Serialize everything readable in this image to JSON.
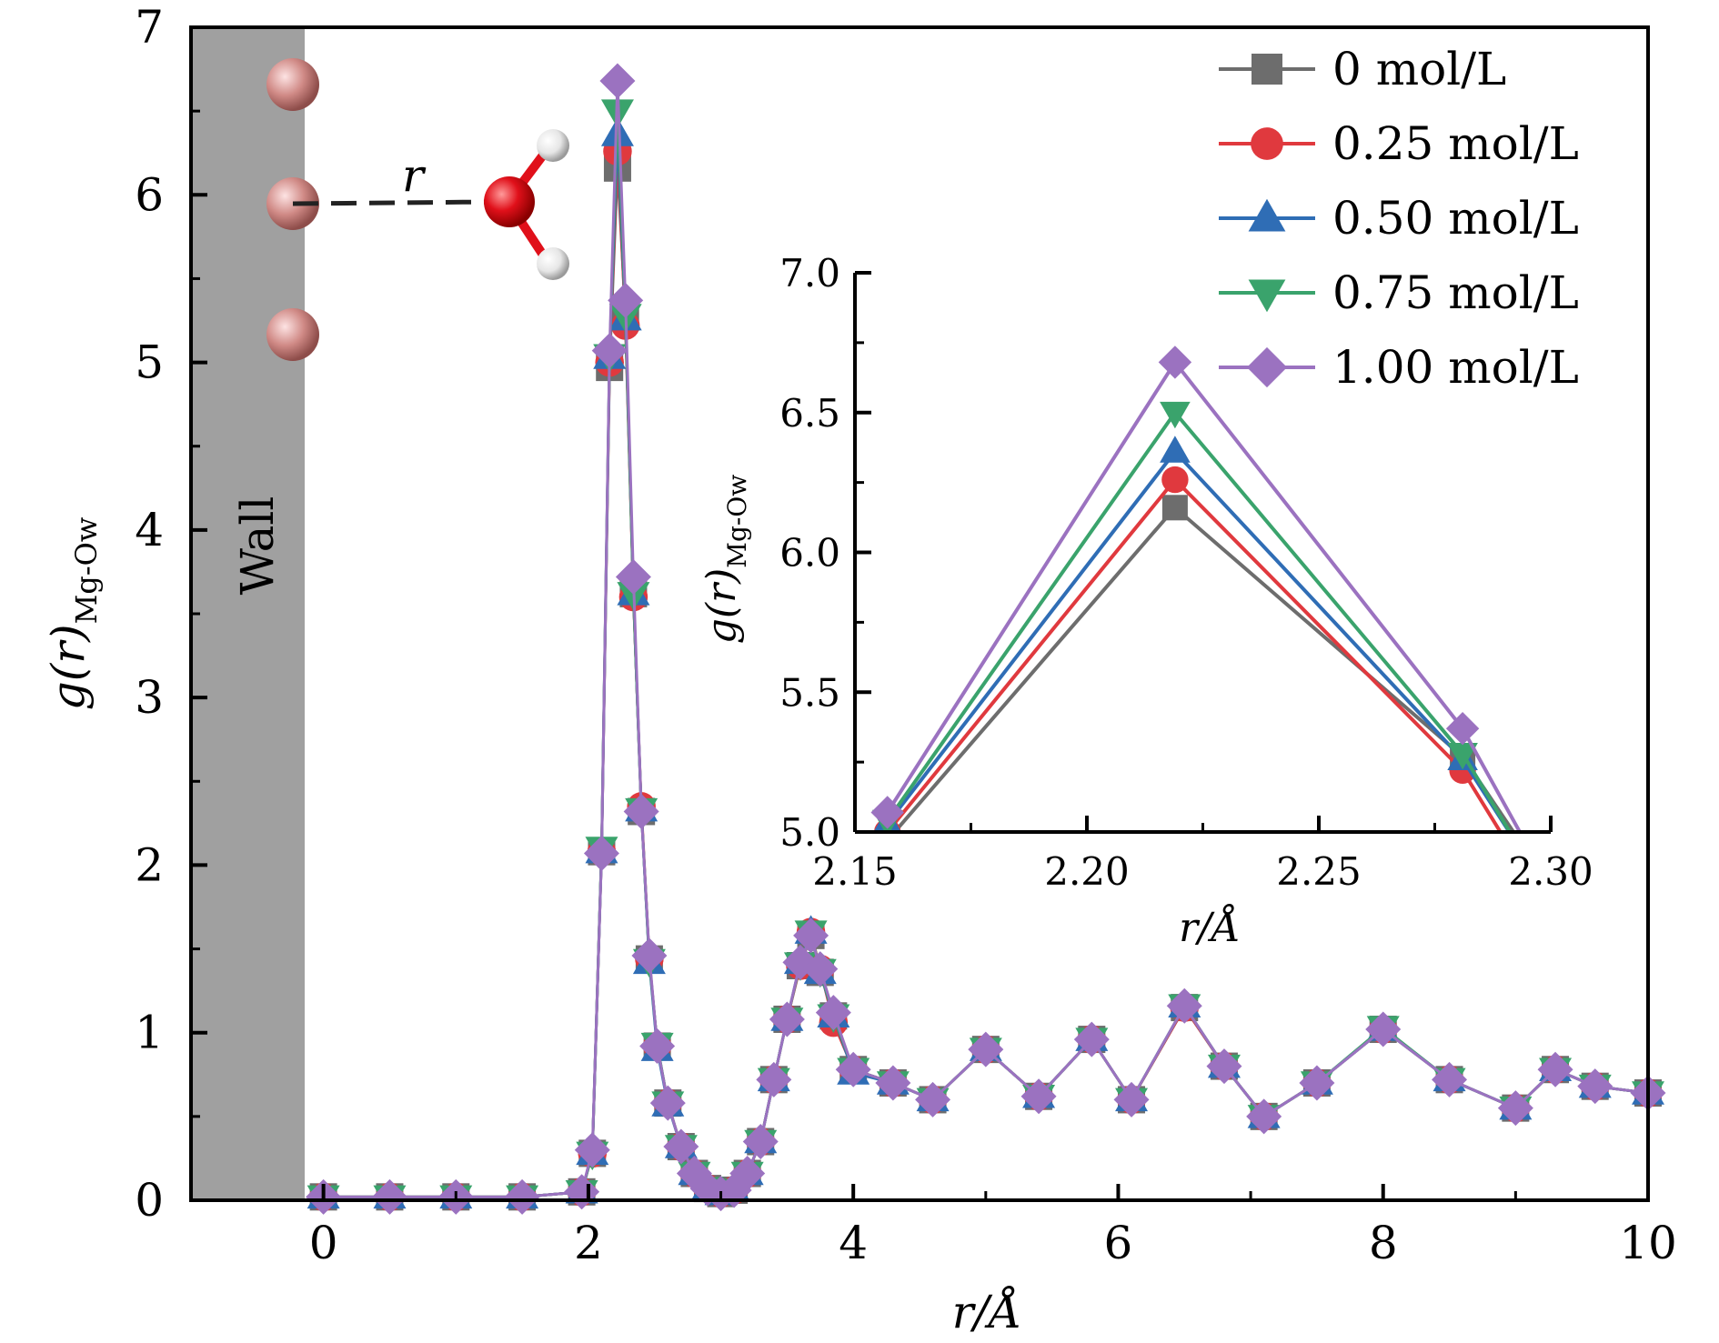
{
  "chart_data": [
    {
      "id": "main",
      "type": "line",
      "xlabel": "r/Å",
      "ylabel_main": "g(r)",
      "ylabel_sub": "Mg-Ow",
      "xlim": [
        -1.0,
        10.0
      ],
      "ylim": [
        0,
        7
      ],
      "xticks": [
        0,
        2,
        4,
        6,
        8,
        10
      ],
      "yticks": [
        0,
        1,
        2,
        3,
        4,
        5,
        6,
        7
      ],
      "legend_position": "top-right",
      "annotations": {
        "wall": "Wall",
        "r": "r"
      },
      "series": [
        {
          "name": "0 mol/L",
          "color": "#6d6d6d",
          "marker": "square",
          "x": [
            0.0,
            0.5,
            1.0,
            1.5,
            1.95,
            2.03,
            2.1,
            2.16,
            2.22,
            2.28,
            2.34,
            2.4,
            2.46,
            2.52,
            2.6,
            2.7,
            2.8,
            2.9,
            3.0,
            3.1,
            3.2,
            3.3,
            3.4,
            3.5,
            3.6,
            3.68,
            3.75,
            3.85,
            4.0,
            4.3,
            4.6,
            5.0,
            5.4,
            5.8,
            6.1,
            6.5,
            6.8,
            7.1,
            7.5,
            8.0,
            8.5,
            9.0,
            9.3,
            9.6,
            10.0
          ],
          "y": [
            0.02,
            0.02,
            0.02,
            0.02,
            0.05,
            0.28,
            2.08,
            4.97,
            6.16,
            5.27,
            3.62,
            2.32,
            1.44,
            0.92,
            0.58,
            0.32,
            0.16,
            0.07,
            0.04,
            0.06,
            0.16,
            0.35,
            0.72,
            1.08,
            1.4,
            1.58,
            1.36,
            1.1,
            0.78,
            0.7,
            0.6,
            0.9,
            0.62,
            0.96,
            0.6,
            1.15,
            0.8,
            0.5,
            0.7,
            1.02,
            0.72,
            0.55,
            0.78,
            0.68,
            0.64
          ]
        },
        {
          "name": "0.25 mol/L",
          "color": "#e0393e",
          "marker": "circle",
          "x": [
            0.0,
            0.5,
            1.0,
            1.5,
            1.95,
            2.03,
            2.1,
            2.16,
            2.22,
            2.28,
            2.34,
            2.4,
            2.46,
            2.52,
            2.6,
            2.7,
            2.8,
            2.9,
            3.0,
            3.1,
            3.2,
            3.3,
            3.4,
            3.5,
            3.6,
            3.68,
            3.75,
            3.85,
            4.0,
            4.3,
            4.6,
            5.0,
            5.4,
            5.8,
            6.1,
            6.5,
            6.8,
            7.1,
            7.5,
            8.0,
            8.5,
            9.0,
            9.3,
            9.6,
            10.0
          ],
          "y": [
            0.02,
            0.02,
            0.02,
            0.02,
            0.05,
            0.28,
            2.08,
            5.0,
            6.26,
            5.22,
            3.6,
            2.35,
            1.44,
            0.92,
            0.58,
            0.32,
            0.16,
            0.07,
            0.04,
            0.06,
            0.16,
            0.35,
            0.72,
            1.08,
            1.4,
            1.6,
            1.38,
            1.06,
            0.78,
            0.7,
            0.6,
            0.9,
            0.62,
            0.96,
            0.6,
            1.15,
            0.8,
            0.5,
            0.7,
            1.02,
            0.72,
            0.55,
            0.78,
            0.68,
            0.64
          ]
        },
        {
          "name": "0.50 mol/L",
          "color": "#2f6db5",
          "marker": "triangle-up",
          "x": [
            0.0,
            0.5,
            1.0,
            1.5,
            1.95,
            2.03,
            2.1,
            2.16,
            2.22,
            2.28,
            2.34,
            2.4,
            2.46,
            2.52,
            2.6,
            2.7,
            2.8,
            2.9,
            3.0,
            3.1,
            3.2,
            3.3,
            3.4,
            3.5,
            3.6,
            3.68,
            3.75,
            3.85,
            4.0,
            4.3,
            4.6,
            5.0,
            5.4,
            5.8,
            6.1,
            6.5,
            6.8,
            7.1,
            7.5,
            8.0,
            8.5,
            9.0,
            9.3,
            9.6,
            10.0
          ],
          "y": [
            0.02,
            0.02,
            0.02,
            0.02,
            0.05,
            0.28,
            2.08,
            5.03,
            6.36,
            5.26,
            3.62,
            2.33,
            1.42,
            0.9,
            0.57,
            0.32,
            0.16,
            0.07,
            0.04,
            0.06,
            0.16,
            0.35,
            0.72,
            1.08,
            1.42,
            1.6,
            1.36,
            1.1,
            0.76,
            0.7,
            0.6,
            0.9,
            0.62,
            0.96,
            0.6,
            1.16,
            0.8,
            0.5,
            0.7,
            1.02,
            0.72,
            0.55,
            0.78,
            0.68,
            0.64
          ]
        },
        {
          "name": "0.75 mol/L",
          "color": "#3aa36c",
          "marker": "triangle-down",
          "x": [
            0.0,
            0.5,
            1.0,
            1.5,
            1.95,
            2.03,
            2.1,
            2.16,
            2.22,
            2.28,
            2.34,
            2.4,
            2.46,
            2.52,
            2.6,
            2.7,
            2.8,
            2.9,
            3.0,
            3.1,
            3.2,
            3.3,
            3.4,
            3.5,
            3.6,
            3.68,
            3.75,
            3.85,
            4.0,
            4.3,
            4.6,
            5.0,
            5.4,
            5.8,
            6.1,
            6.5,
            6.8,
            7.1,
            7.5,
            8.0,
            8.5,
            9.0,
            9.3,
            9.6,
            10.0
          ],
          "y": [
            0.02,
            0.02,
            0.02,
            0.02,
            0.05,
            0.28,
            2.1,
            5.04,
            6.5,
            5.28,
            3.62,
            2.33,
            1.43,
            0.93,
            0.58,
            0.32,
            0.16,
            0.07,
            0.04,
            0.06,
            0.16,
            0.35,
            0.72,
            1.08,
            1.41,
            1.6,
            1.37,
            1.1,
            0.78,
            0.7,
            0.6,
            0.9,
            0.62,
            0.96,
            0.6,
            1.16,
            0.8,
            0.5,
            0.7,
            1.03,
            0.72,
            0.55,
            0.78,
            0.68,
            0.64
          ]
        },
        {
          "name": "1.00 mol/L",
          "color": "#9b72c0",
          "marker": "diamond",
          "x": [
            0.0,
            0.5,
            1.0,
            1.5,
            1.95,
            2.03,
            2.1,
            2.16,
            2.22,
            2.28,
            2.34,
            2.4,
            2.46,
            2.52,
            2.6,
            2.7,
            2.8,
            2.9,
            3.0,
            3.1,
            3.2,
            3.3,
            3.4,
            3.5,
            3.6,
            3.68,
            3.75,
            3.85,
            4.0,
            4.3,
            4.6,
            5.0,
            5.4,
            5.8,
            6.1,
            6.5,
            6.8,
            7.1,
            7.5,
            8.0,
            8.5,
            9.0,
            9.3,
            9.6,
            10.0
          ],
          "y": [
            0.02,
            0.02,
            0.02,
            0.02,
            0.05,
            0.3,
            2.07,
            5.07,
            6.68,
            5.37,
            3.72,
            2.32,
            1.46,
            0.92,
            0.58,
            0.32,
            0.16,
            0.07,
            0.04,
            0.06,
            0.16,
            0.35,
            0.72,
            1.08,
            1.42,
            1.58,
            1.38,
            1.12,
            0.78,
            0.7,
            0.6,
            0.9,
            0.62,
            0.96,
            0.6,
            1.16,
            0.8,
            0.5,
            0.7,
            1.02,
            0.72,
            0.55,
            0.78,
            0.68,
            0.64
          ]
        }
      ]
    },
    {
      "id": "inset",
      "type": "line",
      "xlabel": "r/Å",
      "ylabel_main": "g(r)",
      "ylabel_sub": "Mg-Ow",
      "xlim": [
        2.15,
        2.3
      ],
      "ylim": [
        5.0,
        7.0
      ],
      "xticks": [
        2.15,
        2.2,
        2.25,
        2.3
      ],
      "xtick_labels": [
        "2.15",
        "2.20",
        "2.25",
        "2.30"
      ],
      "yticks": [
        5.0,
        5.5,
        6.0,
        6.5,
        7.0
      ],
      "ytick_labels": [
        "5.0",
        "5.5",
        "6.0",
        "6.5",
        "7.0"
      ],
      "series": [
        {
          "name": "0 mol/L",
          "color": "#6d6d6d",
          "marker": "square",
          "x": [
            2.157,
            2.219,
            2.281,
            2.294
          ],
          "y": [
            4.97,
            6.16,
            5.27,
            4.95
          ]
        },
        {
          "name": "0.25 mol/L",
          "color": "#e0393e",
          "marker": "circle",
          "x": [
            2.157,
            2.219,
            2.281,
            2.291
          ],
          "y": [
            5.0,
            6.26,
            5.22,
            4.95
          ]
        },
        {
          "name": "0.50 mol/L",
          "color": "#2f6db5",
          "marker": "triangle-up",
          "x": [
            2.157,
            2.219,
            2.281,
            2.293
          ],
          "y": [
            5.03,
            6.36,
            5.26,
            4.95
          ]
        },
        {
          "name": "0.75 mol/L",
          "color": "#3aa36c",
          "marker": "triangle-down",
          "x": [
            2.157,
            2.219,
            2.281,
            2.293
          ],
          "y": [
            5.04,
            6.5,
            5.28,
            4.95
          ]
        },
        {
          "name": "1.00 mol/L",
          "color": "#9b72c0",
          "marker": "diamond",
          "x": [
            2.157,
            2.219,
            2.281,
            2.295
          ],
          "y": [
            5.07,
            6.68,
            5.37,
            4.95
          ]
        }
      ]
    }
  ]
}
